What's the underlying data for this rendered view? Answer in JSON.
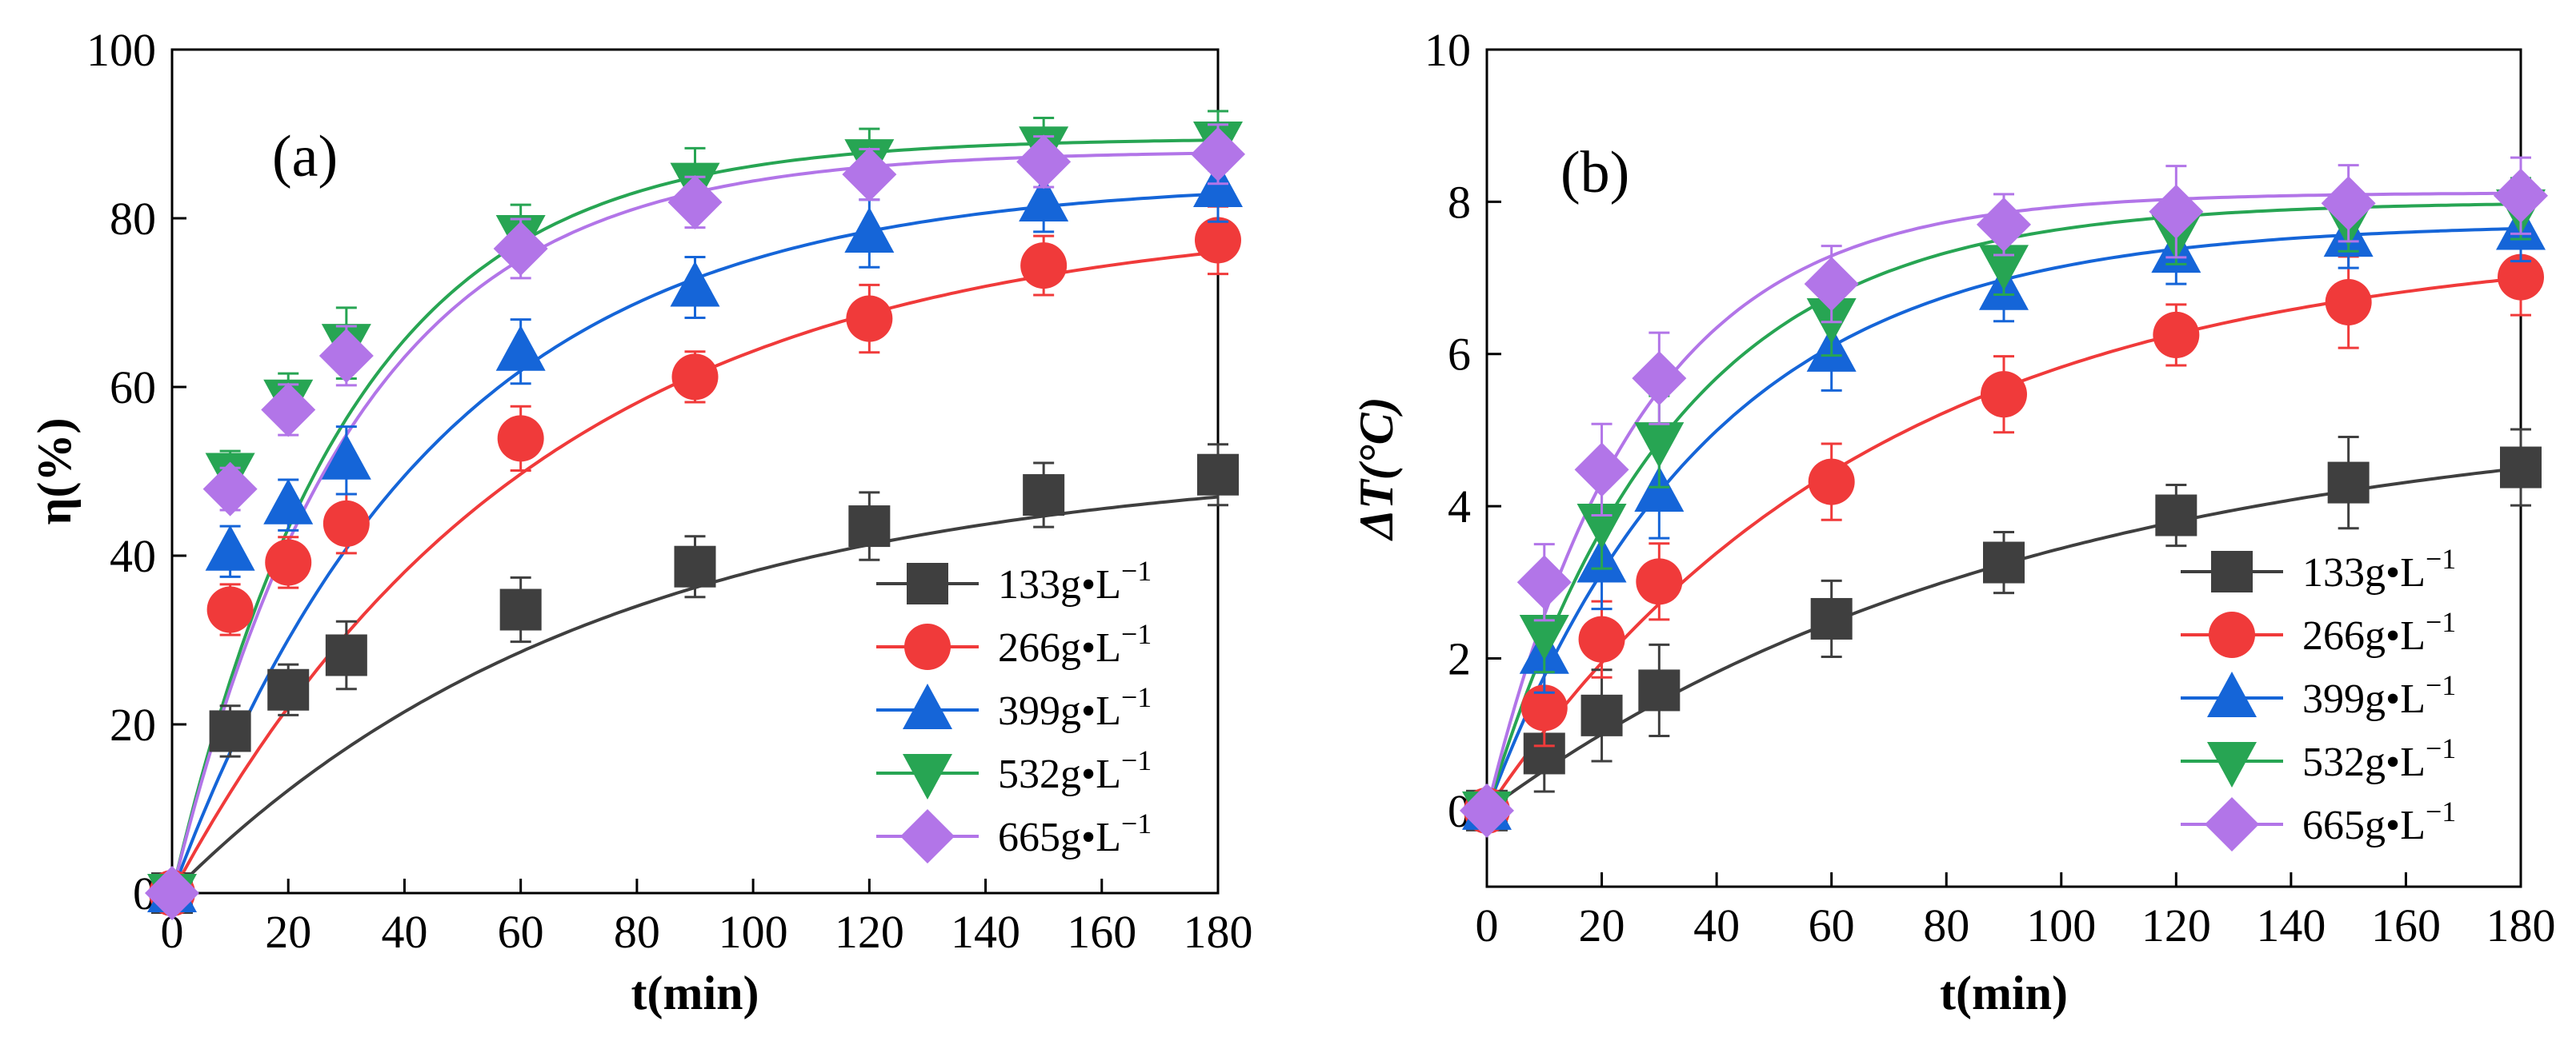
{
  "figure": {
    "series_colors": [
      "#3f3f3f",
      "#f03a3a",
      "#1565d8",
      "#27a553",
      "#b275e8"
    ],
    "series_markers": [
      "square",
      "circle",
      "triangle-up",
      "triangle-down",
      "diamond"
    ]
  },
  "chart_data": [
    {
      "type": "line",
      "panel_label": "(a)",
      "title": "",
      "xlabel": "t(min)",
      "ylabel": "η(%)",
      "xlim": [
        0,
        180
      ],
      "ylim": [
        0,
        100
      ],
      "xticks": [
        0,
        20,
        40,
        60,
        80,
        100,
        120,
        140,
        160,
        180
      ],
      "yticks": [
        0,
        20,
        40,
        60,
        80,
        100
      ],
      "grid": false,
      "legend_position": "bottom-right",
      "x": [
        0,
        10,
        20,
        30,
        60,
        90,
        120,
        150,
        180
      ],
      "series": [
        {
          "name": "133g•L",
          "name_sup": "−1",
          "values": [
            0,
            19.2,
            24.1,
            28.2,
            33.6,
            38.7,
            43.5,
            47.2,
            49.6
          ],
          "errors": [
            1,
            3,
            3,
            4,
            3.8,
            3.6,
            4,
            3.8,
            3.6
          ],
          "fit_final": 51.5,
          "fit_rate": 0.0135
        },
        {
          "name": "266g•L",
          "name_sup": "−1",
          "values": [
            0,
            33.6,
            39.2,
            43.8,
            53.9,
            61.2,
            68.1,
            74.4,
            77.4
          ],
          "errors": [
            1,
            3,
            3,
            3.5,
            3.8,
            3,
            4,
            3.5,
            4
          ],
          "fit_final": 80.5,
          "fit_rate": 0.016
        },
        {
          "name": "399g•L",
          "name_sup": "−1",
          "values": [
            0,
            40.5,
            46,
            51.3,
            64.2,
            71.8,
            78.2,
            81.9,
            83.6
          ],
          "errors": [
            1,
            3,
            3,
            4,
            3.8,
            3.6,
            4,
            3.5,
            4
          ],
          "fit_final": 84.5,
          "fit_rate": 0.022
        },
        {
          "name": "532g•L",
          "name_sup": "−1",
          "values": [
            0,
            49.9,
            58.6,
            65.2,
            78.1,
            84.3,
            87.1,
            88.6,
            89.2
          ],
          "errors": [
            1,
            2.5,
            3,
            4.2,
            3.5,
            4,
            3.5,
            3.3,
            3.5
          ],
          "fit_final": 89.5,
          "fit_rate": 0.033
        },
        {
          "name": "665g•L",
          "name_sup": "−1",
          "values": [
            0,
            47.9,
            57.3,
            63.7,
            76.4,
            81.9,
            85.2,
            86.7,
            87.6
          ],
          "errors": [
            1,
            2.5,
            3,
            3.5,
            3.5,
            3,
            3,
            3,
            3.5
          ],
          "fit_final": 88,
          "fit_rate": 0.032
        }
      ]
    },
    {
      "type": "line",
      "panel_label": "(b)",
      "title": "",
      "xlabel": "t(min)",
      "ylabel": "ΔT(°C)",
      "xlim": [
        0,
        180
      ],
      "ylim": [
        -1,
        10
      ],
      "xticks": [
        0,
        20,
        40,
        60,
        80,
        100,
        120,
        140,
        160,
        180
      ],
      "yticks": [
        0,
        2,
        4,
        6,
        8,
        10
      ],
      "grid": false,
      "legend_position": "bottom-right",
      "x": [
        0,
        10,
        20,
        30,
        60,
        90,
        120,
        150,
        180
      ],
      "series": [
        {
          "name": "133g•L",
          "name_sup": "−1",
          "values": [
            0,
            0.75,
            1.25,
            1.58,
            2.52,
            3.26,
            3.88,
            4.31,
            4.51
          ],
          "errors": [
            0.1,
            0.5,
            0.6,
            0.6,
            0.5,
            0.4,
            0.4,
            0.6,
            0.5
          ],
          "fit_final": 5.3,
          "fit_rate": 0.0105
        },
        {
          "name": "266g•L",
          "name_sup": "−1",
          "values": [
            0,
            1.35,
            2.25,
            3.01,
            4.32,
            5.47,
            6.25,
            6.68,
            7.01
          ],
          "errors": [
            0.1,
            0.5,
            0.5,
            0.5,
            0.5,
            0.5,
            0.4,
            0.6,
            0.5
          ],
          "fit_final": 7.5,
          "fit_rate": 0.015
        },
        {
          "name": "399g•L",
          "name_sup": "−1",
          "values": [
            0,
            2.05,
            3.25,
            4.18,
            6.02,
            6.83,
            7.32,
            7.53,
            7.62
          ],
          "errors": [
            0.1,
            0.5,
            0.6,
            0.6,
            0.5,
            0.4,
            0.4,
            0.4,
            0.4
          ],
          "fit_final": 7.72,
          "fit_rate": 0.026
        },
        {
          "name": "532g•L",
          "name_sup": "−1",
          "values": [
            0,
            2.32,
            3.78,
            4.85,
            6.48,
            7.18,
            7.58,
            7.75,
            7.91
          ],
          "errors": [
            0.1,
            0.5,
            0.6,
            0.6,
            0.5,
            0.4,
            0.4,
            0.4,
            0.4
          ],
          "fit_final": 8.0,
          "fit_rate": 0.031
        },
        {
          "name": "665g•L",
          "name_sup": "−1",
          "values": [
            0,
            3.0,
            4.48,
            5.68,
            6.92,
            7.7,
            7.87,
            7.98,
            8.08
          ],
          "errors": [
            0.1,
            0.5,
            0.6,
            0.6,
            0.5,
            0.4,
            0.6,
            0.5,
            0.5
          ],
          "fit_final": 8.12,
          "fit_rate": 0.038
        }
      ]
    }
  ]
}
